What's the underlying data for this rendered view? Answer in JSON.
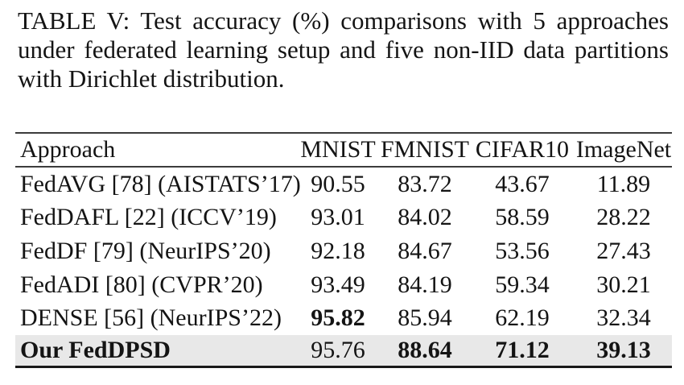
{
  "caption": {
    "lines": [
      "TABLE V: Test accuracy (%) comparisons with 5 approaches",
      "under federated learning setup and five non-IID data partitions",
      "with Dirichlet distribution."
    ]
  },
  "table": {
    "columns": [
      "Approach",
      "MNIST",
      "FMNIST",
      "CIFAR10",
      "ImageNet"
    ],
    "rows": [
      {
        "approach": "FedAVG [78] (AISTATS’17)",
        "mnist": "90.55",
        "fmnist": "83.72",
        "cifar10": "43.67",
        "imagenet": "11.89"
      },
      {
        "approach": "FedDAFL [22] (ICCV’19)",
        "mnist": "93.01",
        "fmnist": "84.02",
        "cifar10": "58.59",
        "imagenet": "28.22"
      },
      {
        "approach": "FedDF [79] (NeurIPS’20)",
        "mnist": "92.18",
        "fmnist": "84.67",
        "cifar10": "53.56",
        "imagenet": "27.43"
      },
      {
        "approach": "FedADI [80] (CVPR’20)",
        "mnist": "93.49",
        "fmnist": "84.19",
        "cifar10": "59.34",
        "imagenet": "30.21"
      },
      {
        "approach": "DENSE [56] (NeurIPS’22)",
        "mnist": "95.82",
        "fmnist": "85.94",
        "cifar10": "62.19",
        "imagenet": "32.34"
      },
      {
        "approach": "Our FedDPSD",
        "mnist": "95.76",
        "fmnist": "88.64",
        "cifar10": "71.12",
        "imagenet": "39.13"
      }
    ],
    "highlight_color": "#e8e8e8"
  }
}
